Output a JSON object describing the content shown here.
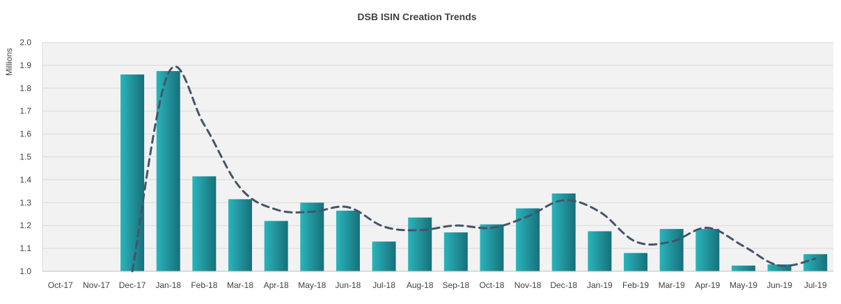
{
  "chart_data": {
    "type": "bar",
    "title": "DSB ISIN Creation Trends",
    "xlabel": "",
    "ylabel": "Millions",
    "ylim": [
      1.0,
      2.0
    ],
    "yticks": [
      "1.0",
      "1.1",
      "1.2",
      "1.3",
      "1.4",
      "1.5",
      "1.6",
      "1.7",
      "1.8",
      "1.9",
      "2.0"
    ],
    "categories": [
      "Oct-17",
      "Nov-17",
      "Dec-17",
      "Jan-18",
      "Feb-18",
      "Mar-18",
      "Apr-18",
      "May-18",
      "Jun-18",
      "Jul-18",
      "Aug-18",
      "Sep-18",
      "Oct-18",
      "Nov-18",
      "Dec-18",
      "Jan-19",
      "Feb-19",
      "Mar-19",
      "Apr-19",
      "May-19",
      "Jun-19",
      "Jul-19"
    ],
    "series": [
      {
        "type": "bar",
        "values": [
          null,
          null,
          1.86,
          1.875,
          1.415,
          1.315,
          1.22,
          1.3,
          1.265,
          1.13,
          1.235,
          1.17,
          1.205,
          1.275,
          1.34,
          1.175,
          1.08,
          1.185,
          1.185,
          1.025,
          1.03,
          1.075
        ]
      },
      {
        "type": "line",
        "style": "dashed",
        "values": [
          null,
          null,
          1.0,
          1.865,
          1.64,
          1.365,
          1.27,
          1.26,
          1.28,
          1.195,
          1.18,
          1.2,
          1.19,
          1.24,
          1.31,
          1.26,
          1.13,
          1.13,
          1.19,
          1.11,
          1.025,
          1.055
        ]
      }
    ],
    "grid": true,
    "legend": "none",
    "colors": {
      "bar_light": "#2ab4bb",
      "bar_dark": "#17707a",
      "line": "#44546a",
      "plot_bg": "#f2f2f2",
      "grid": "#d9d9d9",
      "text": "#404040"
    }
  }
}
